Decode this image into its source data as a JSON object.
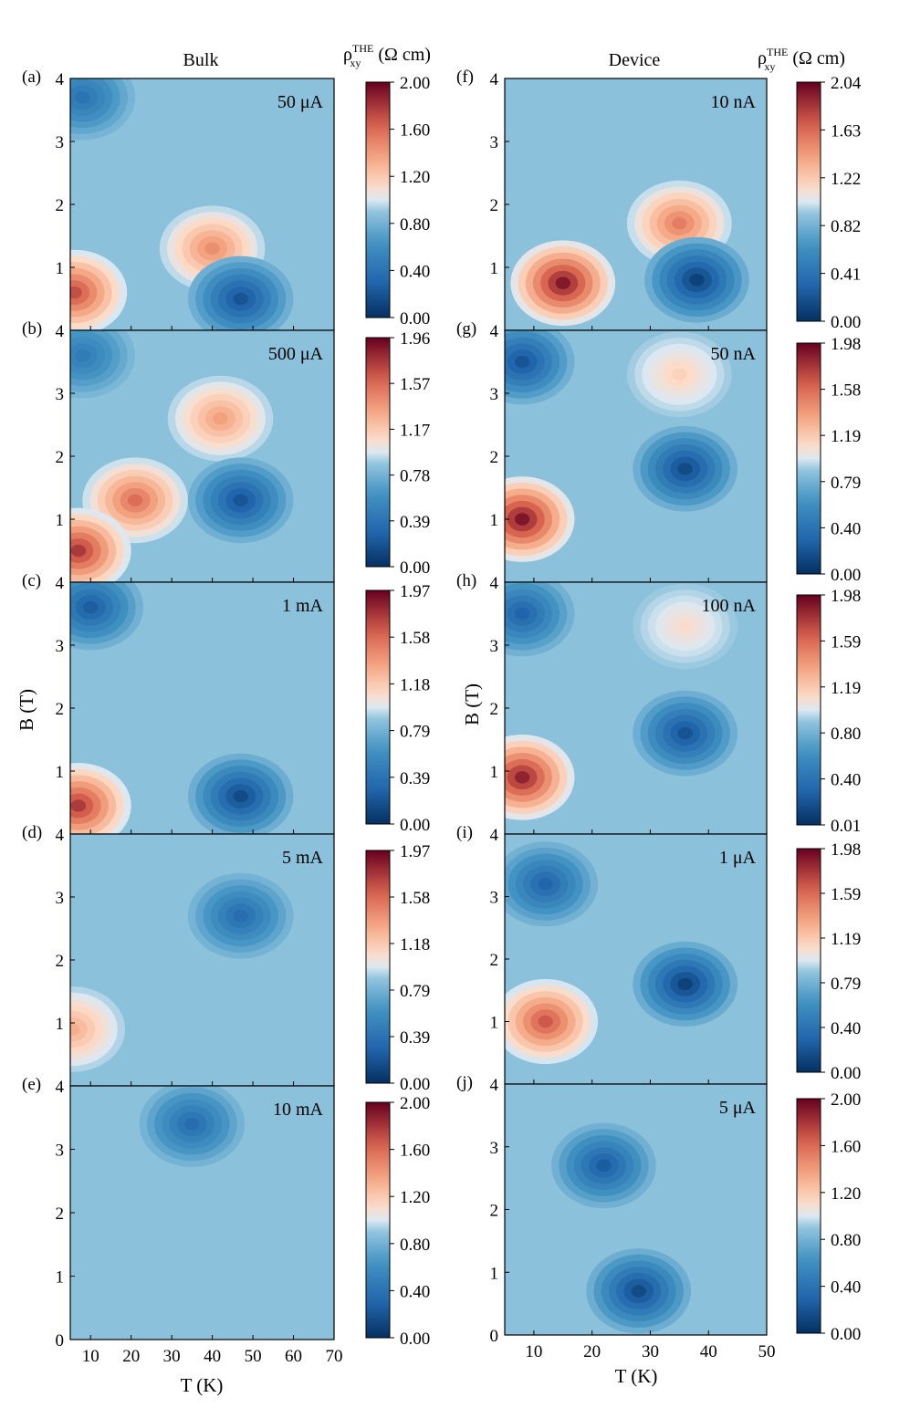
{
  "figure": {
    "column_titles": [
      "Bulk",
      "Device"
    ],
    "colorbar_title": {
      "symbol": "ρ",
      "superscript": "THE",
      "subscript": "xy",
      "unit": " (Ω cm)"
    },
    "ylabel": "B (T)",
    "xlabel": "T (K)"
  },
  "chart_data": [
    {
      "type": "heatmap",
      "label": "(a)",
      "annotation": "50 μA",
      "column": "Bulk",
      "x": {
        "label": "T (K)",
        "range": [
          5,
          70
        ],
        "ticks": [
          10,
          20,
          30,
          40,
          50,
          60,
          70
        ]
      },
      "y": {
        "label": "B (T)",
        "range": [
          0,
          4
        ],
        "ticks": [
          1,
          2,
          3,
          4
        ]
      },
      "colorbar": {
        "min": 0.0,
        "max": 2.0,
        "ticks": [
          "0.00",
          "0.40",
          "0.80",
          "1.20",
          "1.60",
          "2.00"
        ]
      },
      "features": [
        {
          "kind": "high",
          "T": 40,
          "B": 1.3,
          "value": 1.45
        },
        {
          "kind": "high",
          "T": 6,
          "B": 0.6,
          "value": 1.7
        },
        {
          "kind": "low",
          "T": 47,
          "B": 0.5,
          "value": 0.2
        },
        {
          "kind": "low",
          "T": 8,
          "B": 3.7,
          "value": 0.4
        }
      ]
    },
    {
      "type": "heatmap",
      "label": "(b)",
      "annotation": "500 μA",
      "column": "Bulk",
      "x": {
        "label": "T (K)",
        "range": [
          5,
          70
        ],
        "ticks": [
          10,
          20,
          30,
          40,
          50,
          60,
          70
        ]
      },
      "y": {
        "label": "B (T)",
        "range": [
          0,
          4
        ],
        "ticks": [
          1,
          2,
          3,
          4
        ]
      },
      "colorbar": {
        "min": 0.0,
        "max": 1.96,
        "ticks": [
          "0.00",
          "0.39",
          "0.78",
          "1.17",
          "1.57",
          "1.96"
        ]
      },
      "features": [
        {
          "kind": "high",
          "T": 42,
          "B": 2.6,
          "value": 1.35
        },
        {
          "kind": "high",
          "T": 21,
          "B": 1.3,
          "value": 1.55
        },
        {
          "kind": "high",
          "T": 7,
          "B": 0.5,
          "value": 1.75
        },
        {
          "kind": "low",
          "T": 47,
          "B": 1.3,
          "value": 0.2
        },
        {
          "kind": "low",
          "T": 8,
          "B": 3.6,
          "value": 0.45
        }
      ]
    },
    {
      "type": "heatmap",
      "label": "(c)",
      "annotation": "1 mA",
      "column": "Bulk",
      "x": {
        "label": "T (K)",
        "range": [
          5,
          70
        ],
        "ticks": [
          10,
          20,
          30,
          40,
          50,
          60,
          70
        ]
      },
      "y": {
        "label": "B (T)",
        "range": [
          0,
          4
        ],
        "ticks": [
          1,
          2,
          3,
          4
        ]
      },
      "colorbar": {
        "min": 0.0,
        "max": 1.97,
        "ticks": [
          "0.00",
          "0.39",
          "0.79",
          "1.18",
          "1.58",
          "1.97"
        ]
      },
      "features": [
        {
          "kind": "high",
          "T": 7,
          "B": 0.45,
          "value": 1.75
        },
        {
          "kind": "low",
          "T": 47,
          "B": 0.6,
          "value": 0.15
        },
        {
          "kind": "low",
          "T": 10,
          "B": 3.6,
          "value": 0.25
        }
      ]
    },
    {
      "type": "heatmap",
      "label": "(d)",
      "annotation": "5 mA",
      "column": "Bulk",
      "x": {
        "label": "T (K)",
        "range": [
          5,
          70
        ],
        "ticks": [
          10,
          20,
          30,
          40,
          50,
          60,
          70
        ]
      },
      "y": {
        "label": "B (T)",
        "range": [
          0,
          4
        ],
        "ticks": [
          1,
          2,
          3,
          4
        ]
      },
      "colorbar": {
        "min": 0.0,
        "max": 1.97,
        "ticks": [
          "0.00",
          "0.39",
          "0.79",
          "1.18",
          "1.58",
          "1.97"
        ]
      },
      "features": [
        {
          "kind": "high",
          "T": 5.5,
          "B": 0.9,
          "value": 1.3
        },
        {
          "kind": "low",
          "T": 47,
          "B": 2.7,
          "value": 0.35
        }
      ]
    },
    {
      "type": "heatmap",
      "label": "(e)",
      "annotation": "10 mA",
      "column": "Bulk",
      "x": {
        "label": "T (K)",
        "range": [
          5,
          70
        ],
        "ticks": [
          10,
          20,
          30,
          40,
          50,
          60,
          70
        ]
      },
      "y": {
        "label": "B (T)",
        "range": [
          0,
          4
        ],
        "ticks": [
          0,
          1,
          2,
          3,
          4
        ]
      },
      "colorbar": {
        "min": 0.0,
        "max": 2.0,
        "ticks": [
          "0.00",
          "0.40",
          "0.80",
          "1.20",
          "1.60",
          "2.00"
        ]
      },
      "features": [
        {
          "kind": "low",
          "T": 35,
          "B": 3.4,
          "value": 0.35
        }
      ]
    },
    {
      "type": "heatmap",
      "label": "(f)",
      "annotation": "10 nA",
      "column": "Device",
      "x": {
        "label": "T (K)",
        "range": [
          5,
          50
        ],
        "ticks": [
          10,
          20,
          30,
          40,
          50
        ]
      },
      "y": {
        "label": "B (T)",
        "range": [
          0,
          4
        ],
        "ticks": [
          1,
          2,
          3,
          4
        ]
      },
      "colorbar": {
        "min": 0.0,
        "max": 2.04,
        "ticks": [
          "0.00",
          "0.41",
          "0.82",
          "1.22",
          "1.63",
          "2.04"
        ]
      },
      "features": [
        {
          "kind": "high",
          "T": 15,
          "B": 0.75,
          "value": 1.95
        },
        {
          "kind": "high",
          "T": 35,
          "B": 1.7,
          "value": 1.55
        },
        {
          "kind": "low",
          "T": 38,
          "B": 0.8,
          "value": 0.1
        }
      ]
    },
    {
      "type": "heatmap",
      "label": "(g)",
      "annotation": "50 nA",
      "column": "Device",
      "x": {
        "label": "T (K)",
        "range": [
          5,
          50
        ],
        "ticks": [
          10,
          20,
          30,
          40,
          50
        ]
      },
      "y": {
        "label": "B (T)",
        "range": [
          0,
          4
        ],
        "ticks": [
          1,
          2,
          3,
          4
        ]
      },
      "colorbar": {
        "min": 0.0,
        "max": 1.98,
        "ticks": [
          "0.00",
          "0.40",
          "0.79",
          "1.19",
          "1.58",
          "1.98"
        ]
      },
      "features": [
        {
          "kind": "high",
          "T": 8,
          "B": 1.0,
          "value": 1.9
        },
        {
          "kind": "high",
          "T": 35,
          "B": 3.3,
          "value": 1.15
        },
        {
          "kind": "low",
          "T": 36,
          "B": 1.8,
          "value": 0.15
        },
        {
          "kind": "low",
          "T": 8,
          "B": 3.5,
          "value": 0.2
        }
      ]
    },
    {
      "type": "heatmap",
      "label": "(h)",
      "annotation": "100 nA",
      "column": "Device",
      "x": {
        "label": "T (K)",
        "range": [
          5,
          50
        ],
        "ticks": [
          10,
          20,
          30,
          40,
          50
        ]
      },
      "y": {
        "label": "B (T)",
        "range": [
          0,
          4
        ],
        "ticks": [
          1,
          2,
          3,
          4
        ]
      },
      "colorbar": {
        "min": 0.01,
        "max": 1.98,
        "ticks": [
          "0.01",
          "0.40",
          "0.80",
          "1.19",
          "1.59",
          "1.98"
        ]
      },
      "features": [
        {
          "kind": "high",
          "T": 8,
          "B": 0.9,
          "value": 1.85
        },
        {
          "kind": "high",
          "T": 36,
          "B": 3.3,
          "value": 1.1
        },
        {
          "kind": "low",
          "T": 36,
          "B": 1.6,
          "value": 0.2
        },
        {
          "kind": "low",
          "T": 8,
          "B": 3.5,
          "value": 0.3
        }
      ]
    },
    {
      "type": "heatmap",
      "label": "(i)",
      "annotation": "1 μA",
      "column": "Device",
      "x": {
        "label": "T (K)",
        "range": [
          5,
          50
        ],
        "ticks": [
          10,
          20,
          30,
          40,
          50
        ]
      },
      "y": {
        "label": "B (T)",
        "range": [
          0,
          4
        ],
        "ticks": [
          1,
          2,
          3,
          4
        ]
      },
      "colorbar": {
        "min": 0.0,
        "max": 1.98,
        "ticks": [
          "0.00",
          "0.40",
          "0.79",
          "1.19",
          "1.59",
          "1.98"
        ]
      },
      "features": [
        {
          "kind": "high",
          "T": 12,
          "B": 1.0,
          "value": 1.65
        },
        {
          "kind": "low",
          "T": 36,
          "B": 1.6,
          "value": 0.1
        },
        {
          "kind": "low",
          "T": 12,
          "B": 3.2,
          "value": 0.3
        }
      ]
    },
    {
      "type": "heatmap",
      "label": "(j)",
      "annotation": "5 μA",
      "column": "Device",
      "x": {
        "label": "T (K)",
        "range": [
          5,
          50
        ],
        "ticks": [
          10,
          20,
          30,
          40,
          50
        ]
      },
      "y": {
        "label": "B (T)",
        "range": [
          0,
          4
        ],
        "ticks": [
          0,
          1,
          2,
          3,
          4
        ]
      },
      "colorbar": {
        "min": 0.0,
        "max": 2.0,
        "ticks": [
          "0.00",
          "0.40",
          "0.80",
          "1.20",
          "1.60",
          "2.00"
        ]
      },
      "features": [
        {
          "kind": "low",
          "T": 28,
          "B": 0.7,
          "value": 0.15
        },
        {
          "kind": "low",
          "T": 22,
          "B": 2.7,
          "value": 0.25
        }
      ]
    }
  ]
}
